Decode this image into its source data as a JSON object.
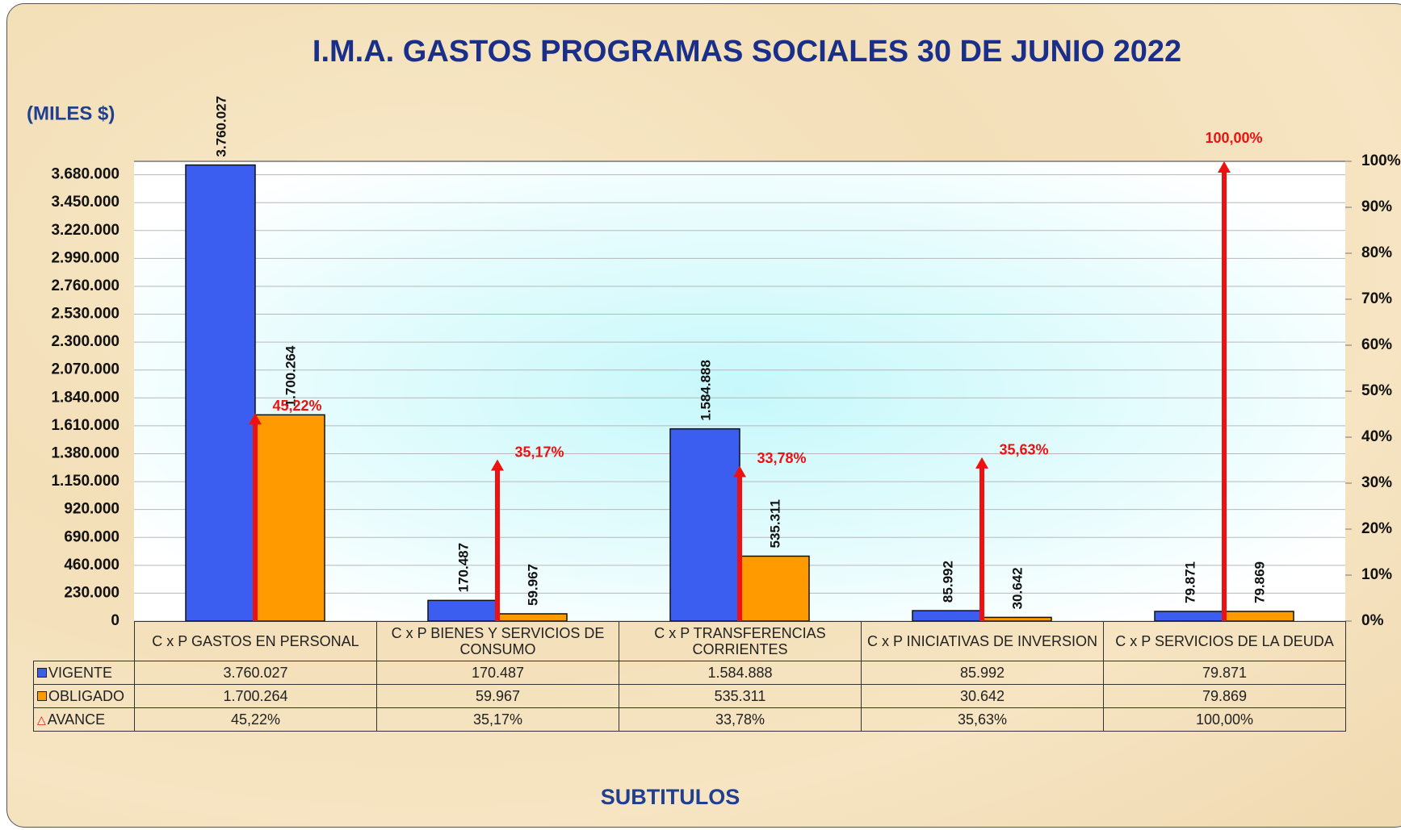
{
  "chart_data": {
    "type": "bar",
    "title": "I.M.A. GASTOS PROGRAMAS SOCIALES  30 DE JUNIO 2022",
    "y_label": "(MILES $)",
    "x_label": "SUBTITULOS",
    "categories": [
      "C x P GASTOS EN PERSONAL",
      "C x P BIENES Y SERVICIOS DE CONSUMO",
      "C x P TRANSFERENCIAS CORRIENTES",
      "C x P INICIATIVAS DE INVERSION",
      "C x P SERVICIOS DE LA DEUDA"
    ],
    "series": [
      {
        "name": "VIGENTE",
        "color": "#3b5ef0",
        "type": "bar",
        "values": [
          3760027,
          170487,
          1584888,
          85992,
          79871
        ],
        "value_labels": [
          "3.760.027",
          "170.487",
          "1.584.888",
          "85.992",
          "79.871"
        ]
      },
      {
        "name": "OBLIGADO",
        "color": "#ff9a00",
        "type": "bar",
        "values": [
          1700264,
          59967,
          535311,
          30642,
          79869
        ],
        "value_labels": [
          "1.700.264",
          "59.967",
          "535.311",
          "30.642",
          "79.869"
        ]
      },
      {
        "name": "AVANCE",
        "color": "#ee1111",
        "type": "arrow",
        "axis": "y2",
        "values": [
          45.22,
          35.17,
          33.78,
          35.63,
          100
        ],
        "value_labels": [
          "45,22%",
          "35,17%",
          "33,78%",
          "35,63%",
          "100,00%"
        ]
      }
    ],
    "ylim": [
      0,
      3790400
    ],
    "yticks": [
      0,
      {
        "value": 230000,
        "label": "230.000"
      },
      {
        "value": 460000,
        "label": "460.000"
      },
      {
        "value": 690000,
        "label": "690.000"
      },
      {
        "value": 920000,
        "label": "920.000"
      },
      {
        "value": 1150000,
        "label": "1.150.000"
      },
      {
        "value": 1380000,
        "label": "1.380.000"
      },
      {
        "value": 1610000,
        "label": "1.610.000"
      },
      {
        "value": 1840000,
        "label": "1.840.000"
      },
      {
        "value": 2070000,
        "label": "2.070.000"
      },
      {
        "value": 2300000,
        "label": "2.300.000"
      },
      {
        "value": 2530000,
        "label": "2.530.000"
      },
      {
        "value": 2760000,
        "label": "2.760.000"
      },
      {
        "value": 2990000,
        "label": "2.990.000"
      },
      {
        "value": 3220000,
        "label": "3.220.000"
      },
      {
        "value": 3450000,
        "label": "3.450.000"
      },
      {
        "value": 3680000,
        "label": "3.680.000"
      }
    ],
    "y2lim": [
      0,
      100
    ],
    "y2ticks": [
      {
        "value": 0,
        "label": "0%"
      },
      {
        "value": 10,
        "label": "10%"
      },
      {
        "value": 20,
        "label": "20%"
      },
      {
        "value": 30,
        "label": "30%"
      },
      {
        "value": 40,
        "label": "40%"
      },
      {
        "value": 50,
        "label": "50%"
      },
      {
        "value": 60,
        "label": "60%"
      },
      {
        "value": 70,
        "label": "70%"
      },
      {
        "value": 80,
        "label": "80%"
      },
      {
        "value": 90,
        "label": "90%"
      },
      {
        "value": 100,
        "label": "100%"
      }
    ],
    "grid": true
  }
}
